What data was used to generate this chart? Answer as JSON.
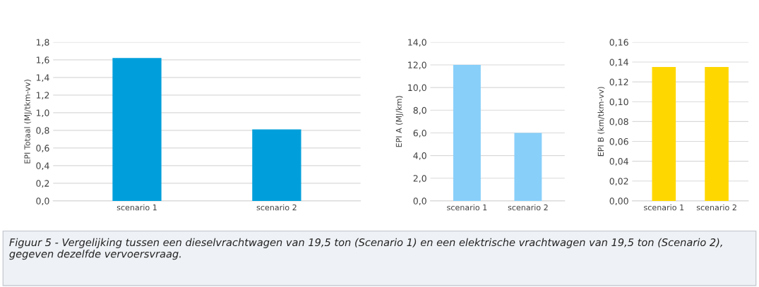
{
  "chart_data": [
    {
      "type": "bar",
      "ylabel": "EPI Totaal (MJ/tkm-vv)",
      "categories": [
        "scenario 1",
        "scenario 2"
      ],
      "values": [
        1.62,
        0.81
      ],
      "color": "#009fdb",
      "ylim": [
        0,
        1.8
      ],
      "yticks": [
        {
          "value": 0,
          "label": "0,0"
        },
        {
          "value": 0.2,
          "label": "0,2"
        },
        {
          "value": 0.4,
          "label": "0,4"
        },
        {
          "value": 0.6,
          "label": "0,6"
        },
        {
          "value": 0.8,
          "label": "0,8"
        },
        {
          "value": 1.0,
          "label": "1,0"
        },
        {
          "value": 1.2,
          "label": "1,2"
        },
        {
          "value": 1.4,
          "label": "1,4"
        },
        {
          "value": 1.6,
          "label": "1,6"
        },
        {
          "value": 1.8,
          "label": "1,8"
        }
      ],
      "grid": "y",
      "annotations": [
        "Figuur 5 - Vergelijking tussen een dieselvrachtwagen van 19,5 ton (Scenario 1) en een elektrische vrachtwagen van 19,5 ton (Scenario 2), gegeven dezelfde vervoersvraag."
      ]
    },
    {
      "type": "bar",
      "ylabel": "EPI A (MJ/km)",
      "categories": [
        "scenario 1",
        "scenario 2"
      ],
      "values": [
        12.0,
        6.0
      ],
      "color": "#88cffa",
      "ylim": [
        0,
        14
      ],
      "yticks": [
        {
          "value": 0,
          "label": "0,0"
        },
        {
          "value": 2,
          "label": "2,0"
        },
        {
          "value": 4,
          "label": "4,0"
        },
        {
          "value": 6,
          "label": "6,0"
        },
        {
          "value": 8,
          "label": "8,0"
        },
        {
          "value": 10,
          "label": "10,0"
        },
        {
          "value": 12,
          "label": "12,0"
        },
        {
          "value": 14,
          "label": "14,0"
        }
      ],
      "grid": "y"
    },
    {
      "type": "bar",
      "ylabel": "EPI B (km/tkm-vv)",
      "categories": [
        "scenario 1",
        "scenario 2"
      ],
      "values": [
        0.135,
        0.135
      ],
      "color": "#ffd700",
      "ylim": [
        0,
        0.16
      ],
      "yticks": [
        {
          "value": 0,
          "label": "0,00"
        },
        {
          "value": 0.02,
          "label": "0,02"
        },
        {
          "value": 0.04,
          "label": "0,04"
        },
        {
          "value": 0.06,
          "label": "0,06"
        },
        {
          "value": 0.08,
          "label": "0,08"
        },
        {
          "value": 0.1,
          "label": "0,10"
        },
        {
          "value": 0.12,
          "label": "0,12"
        },
        {
          "value": 0.14,
          "label": "0,14"
        },
        {
          "value": 0.16,
          "label": "0,16"
        }
      ],
      "grid": "y"
    }
  ]
}
